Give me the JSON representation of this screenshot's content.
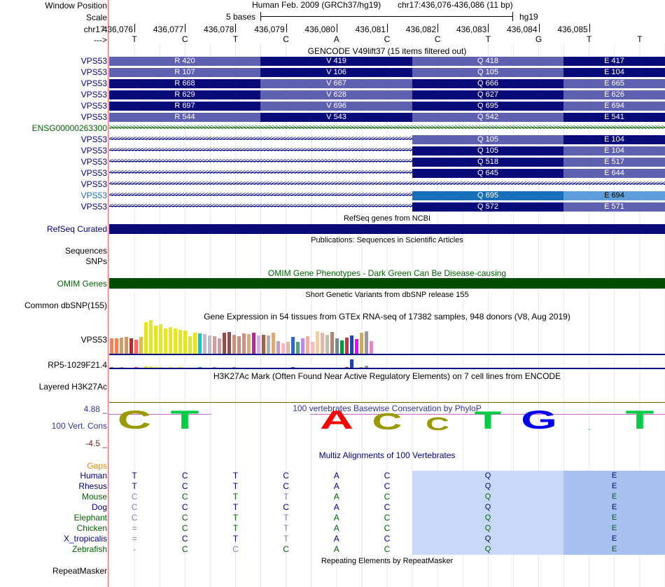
{
  "header": {
    "window_position_label": "Window Position",
    "scale_label": "Scale",
    "chrom_label": "chr17:",
    "strand_label": "--->",
    "assembly_text": "Human Feb. 2009 (GRCh37/hg19)",
    "position_text": "chr17:436,076-436,086 (11 bp)",
    "scale_text": "5 bases",
    "db_text": "hg19",
    "positions": [
      "436,076",
      "436,077",
      "436,078",
      "436,079",
      "436,080",
      "436,081",
      "436,082",
      "436,083",
      "436,084",
      "436,085"
    ],
    "bases": [
      "T",
      "C",
      "T",
      "C",
      "A",
      "C",
      "C",
      "T",
      "G",
      "T",
      "T"
    ]
  },
  "colors": {
    "dark_navy": "#0a0a78",
    "medium_purple": "#6060b0",
    "cyan_blue": "#1a70b8",
    "light_blue": "#5d9dd9",
    "refseq": "#0a0a78",
    "omim": "#004d00",
    "gtex_line": "#000080",
    "k27_line": "#7a5a00",
    "maf_bg": "#c8d8f8",
    "maf_bg_dark": "#a8c0f0",
    "guide": "#e6e6f4"
  },
  "gencode": {
    "title": "GENCODE V49lift37 (15 items filtered out)",
    "rows": [
      {
        "name": "VPS53",
        "kind": "coding",
        "cells": [
          "R 420",
          "V 419",
          "Q 418",
          "E 417"
        ],
        "shade": "light-first"
      },
      {
        "name": "VPS53",
        "kind": "coding",
        "cells": [
          "R 107",
          "V 106",
          "Q 105",
          "E 104"
        ],
        "shade": "light-first"
      },
      {
        "name": "VPS53",
        "kind": "coding",
        "cells": [
          "R 668",
          "V 667",
          "Q 666",
          "E 665"
        ],
        "shade": "dark-first"
      },
      {
        "name": "VPS53",
        "kind": "coding",
        "cells": [
          "R 629",
          "V 628",
          "Q 627",
          "E 626"
        ],
        "shade": "dark-first"
      },
      {
        "name": "VPS53",
        "kind": "coding",
        "cells": [
          "R 697",
          "V 696",
          "Q 695",
          "E 694"
        ],
        "shade": "dark-first"
      },
      {
        "name": "VPS53",
        "kind": "coding",
        "cells": [
          "R 544",
          "V 543",
          "Q 542",
          "E 541"
        ],
        "shade": "light-first"
      },
      {
        "name": "ENSG00000263300",
        "kind": "intron-forward",
        "cells": []
      },
      {
        "name": "VPS53",
        "kind": "partial",
        "cells": [
          "Q 105",
          "E 104"
        ],
        "shade": "light-first"
      },
      {
        "name": "VPS53",
        "kind": "partial",
        "cells": [
          "Q 105",
          "E 104"
        ],
        "shade": "dark-first"
      },
      {
        "name": "VPS53",
        "kind": "partial",
        "cells": [
          "Q 518",
          "E 517"
        ],
        "shade": "dark-first"
      },
      {
        "name": "VPS53",
        "kind": "partial",
        "cells": [
          "Q 645",
          "E 644"
        ],
        "shade": "dark-first"
      },
      {
        "name": "VPS53",
        "kind": "intron-reverse",
        "cells": []
      },
      {
        "name": "VPS53",
        "kind": "partial-cyan",
        "cells": [
          "Q 695",
          "E 694"
        ]
      },
      {
        "name": "VPS53",
        "kind": "partial",
        "cells": [
          "Q 572",
          "E 571"
        ],
        "shade": "dark-first"
      }
    ]
  },
  "refseq": {
    "title": "RefSeq genes from NCBI",
    "label": "RefSeq Curated"
  },
  "publications": {
    "title": "Publications: Sequences in Scientific Articles",
    "label1": "Sequences",
    "label2": "SNPs"
  },
  "omim": {
    "title": "OMIM Gene Phenotypes - Dark Green Can Be Disease-causing",
    "label": "OMIM Genes"
  },
  "dbsnp": {
    "title": "Short Genetic Variants from dbSNP release 155",
    "label": "Common dbSNP(155)"
  },
  "gtex": {
    "title": "Gene Expression in 54 tissues from GTEx RNA-seq of 17382 samples, 948 donors (V8, Aug 2019)",
    "label1": "VPS53",
    "label2": "RP5-1029F21.4",
    "vps53_levels": [
      22,
      22,
      23,
      24,
      22,
      20,
      24,
      45,
      48,
      40,
      42,
      36,
      38,
      36,
      34,
      33,
      25,
      30,
      29,
      28,
      26,
      25,
      22,
      30,
      31,
      27,
      25,
      29,
      28,
      30,
      26,
      27,
      26,
      30,
      18,
      15,
      17,
      24,
      17,
      22,
      25,
      17,
      32,
      30,
      27,
      31,
      22,
      19,
      23,
      26,
      21,
      30,
      32,
      18
    ],
    "vps53_colors": [
      "#ff7f50",
      "#ff7f50",
      "#d3a060",
      "#cc9966",
      "#cc2222",
      "#ff6666",
      "#e6c030",
      "#e6e61e",
      "#e6e61e",
      "#e6e61e",
      "#e6e61e",
      "#e6e61e",
      "#e6e61e",
      "#e6e61e",
      "#e6e61e",
      "#e6e61e",
      "#e6e61e",
      "#e6e61e",
      "#00ced1",
      "#bbbbcc",
      "#bbbbcc",
      "#cca0a0",
      "#cca0a0",
      "#994c4c",
      "#994c4c",
      "#cc9080",
      "#cc9080",
      "#cc9080",
      "#ddaa77",
      "#aa3388",
      "#ddaaee",
      "#996644",
      "#b0b0b0",
      "#ddaa77",
      "#cc99cc",
      "#ffb6c1",
      "#ddbb99",
      "#3366cc",
      "#44aa77",
      "#bb88ee",
      "#ffaa99",
      "#ffbbbb",
      "#ffcc99",
      "#ddbbaa",
      "#ccbbaa",
      "#aa8877",
      "#778899",
      "#009944",
      "#cc3333",
      "#2244aa",
      "#ff00ff",
      "#ccaa66",
      "#999999",
      "#dd88cc"
    ],
    "rp5_levels": [
      2,
      1,
      2,
      1,
      1,
      2,
      1,
      3,
      3,
      2,
      2,
      1,
      2,
      1,
      2,
      1,
      1,
      1,
      2,
      1,
      1,
      2,
      1,
      1,
      1,
      2,
      1,
      1,
      1,
      1,
      1,
      1,
      1,
      1,
      1,
      1,
      1,
      2,
      1,
      1,
      1,
      1,
      1,
      1,
      1,
      1,
      1,
      1,
      2,
      13,
      1,
      2,
      4,
      1
    ]
  },
  "h3k27ac": {
    "title": "H3K27Ac Mark (Often Found Near Active Regulatory Elements) on 7 cell lines from ENCODE",
    "label": "Layered H3K27Ac"
  },
  "phylop": {
    "title": "100 vertebrates Basewise Conservation by PhyloP",
    "label": "100 Vert. Cons",
    "max_label": "4.88 _",
    "min_label": "-4.5 _",
    "letters": [
      "C",
      "T",
      "",
      "",
      "A",
      "C",
      "C",
      "T",
      "G",
      "-",
      "T"
    ],
    "letter_colors": [
      "#9a9a00",
      "#00cc44",
      "#9a9a00",
      "#00cc44",
      "#ff0000",
      "#9a9a00",
      "#9a9a00",
      "#00cc44",
      "#0000ee",
      "#00cc44",
      "#00cc44"
    ],
    "letter_scale": [
      0.85,
      0.85,
      0,
      0,
      0.85,
      0.75,
      0.6,
      0.8,
      0.85,
      0.15,
      0.85
    ]
  },
  "multiz": {
    "title": "Multiz Alignments of 100 Vertebrates",
    "gaps_label": "Gaps",
    "species": [
      {
        "name": "Human",
        "color": "#000080",
        "bases": [
          "T",
          "C",
          "T",
          "C",
          "A",
          "C"
        ],
        "aa": [
          "Q",
          "E"
        ]
      },
      {
        "name": "Rhesus",
        "color": "#000080",
        "bases": [
          "T",
          "C",
          "T",
          "C",
          "A",
          "C"
        ],
        "aa": [
          "Q",
          "E"
        ]
      },
      {
        "name": "Mouse",
        "color": "#006400",
        "bases": [
          "C",
          "C",
          "T",
          "T",
          "A",
          "C"
        ],
        "aa": [
          "Q",
          "E"
        ]
      },
      {
        "name": "Dog",
        "color": "#000080",
        "bases": [
          "C",
          "C",
          "T",
          "C",
          "A",
          "C"
        ],
        "aa": [
          "Q",
          "E"
        ]
      },
      {
        "name": "Elephant",
        "color": "#006400",
        "bases": [
          "C",
          "C",
          "T",
          "T",
          "A",
          "C"
        ],
        "aa": [
          "Q",
          "E"
        ]
      },
      {
        "name": "Chicken",
        "color": "#006400",
        "bases": [
          "=",
          "C",
          "T",
          "T",
          "A",
          "C"
        ],
        "aa": [
          "Q",
          "E"
        ]
      },
      {
        "name": "X_tropicalis",
        "color": "#000080",
        "bases": [
          "=",
          "C",
          "T",
          "T",
          "A",
          "C"
        ],
        "aa": [
          "Q",
          "E"
        ]
      },
      {
        "name": "Zebrafish",
        "color": "#006400",
        "bases": [
          "-",
          "C",
          "C",
          "C",
          "A",
          "C"
        ],
        "aa": [
          "Q",
          "E"
        ]
      }
    ]
  },
  "repeatmasker": {
    "title": "Repeating Elements by RepeatMasker",
    "label": "RepeatMasker"
  }
}
